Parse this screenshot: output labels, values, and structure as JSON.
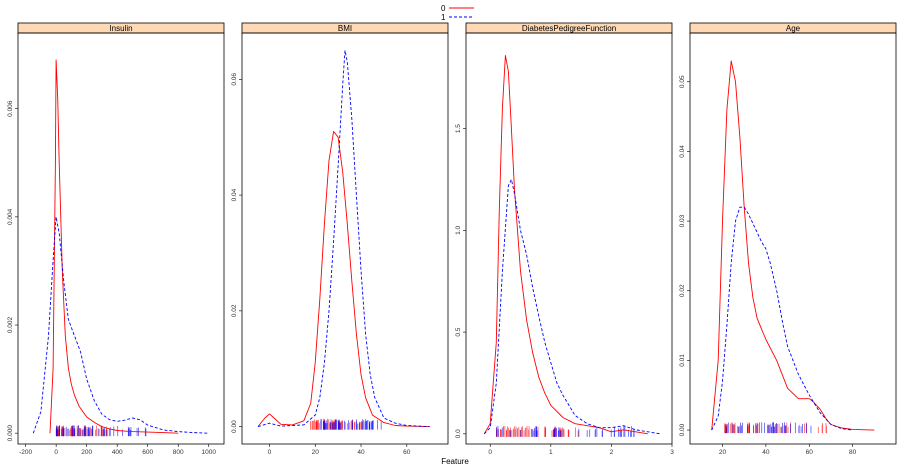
{
  "figure": {
    "xlabel": "Feature",
    "legend": {
      "placement": "top-center",
      "entries": [
        {
          "label": "0",
          "color": "#ff0000",
          "dash": "solid"
        },
        {
          "label": "1",
          "color": "#0000ff",
          "dash": "dashed"
        }
      ]
    },
    "strip_color": "#ffd9b3",
    "colors": {
      "class0": "#ff0000",
      "class1": "#0000ff"
    }
  },
  "chart_data": [
    {
      "type": "line",
      "title": "Insulin",
      "xlim": [
        -250,
        1100
      ],
      "ylim": [
        -0.0002,
        0.0074
      ],
      "xticks": [
        -200,
        0,
        200,
        400,
        600,
        800,
        1000
      ],
      "yticks": [
        0.0,
        0.002,
        0.004,
        0.006
      ],
      "ytick_labels": [
        "0.000",
        "0.002",
        "0.004",
        "0.006"
      ],
      "series": [
        {
          "name": "0",
          "x": [
            -40,
            -20,
            -5,
            0,
            10,
            20,
            40,
            60,
            80,
            100,
            120,
            150,
            200,
            250,
            300,
            350,
            400,
            500,
            600,
            700,
            800
          ],
          "y": [
            0.0,
            0.0012,
            0.005,
            0.0069,
            0.0062,
            0.005,
            0.003,
            0.0018,
            0.0012,
            0.0009,
            0.0007,
            0.0005,
            0.0003,
            0.0002,
            0.00012,
            8e-05,
            5e-05,
            3e-05,
            2e-05,
            1e-05,
            0.0
          ]
        },
        {
          "name": "1",
          "x": [
            -150,
            -100,
            -50,
            -20,
            0,
            20,
            50,
            80,
            120,
            160,
            200,
            250,
            300,
            350,
            400,
            450,
            500,
            550,
            600,
            700,
            800,
            900,
            1000
          ],
          "y": [
            0.0,
            0.0004,
            0.0018,
            0.0032,
            0.004,
            0.0037,
            0.0028,
            0.0021,
            0.0018,
            0.0015,
            0.001,
            0.0006,
            0.00035,
            0.00025,
            0.00022,
            0.00024,
            0.00028,
            0.00025,
            0.00015,
            6e-05,
            3e-05,
            1e-05,
            0.0
          ]
        }
      ],
      "rug": [
        {
          "series": "0",
          "from": 0,
          "to": 350,
          "count": 60
        },
        {
          "series": "1",
          "from": 0,
          "to": 600,
          "count": 50
        }
      ]
    },
    {
      "type": "line",
      "title": "BMI",
      "xlim": [
        -12,
        78
      ],
      "ylim": [
        -0.003,
        0.068
      ],
      "xticks": [
        0,
        20,
        40,
        60
      ],
      "yticks": [
        0.0,
        0.02,
        0.04,
        0.06
      ],
      "ytick_labels": [
        "0.00",
        "0.02",
        "0.04",
        "0.06"
      ],
      "series": [
        {
          "name": "0",
          "x": [
            -5,
            -2,
            0,
            2,
            5,
            10,
            15,
            18,
            20,
            22,
            24,
            26,
            28,
            30,
            32,
            34,
            36,
            38,
            40,
            42,
            45,
            50,
            55,
            60,
            70
          ],
          "y": [
            0.0,
            0.0015,
            0.0022,
            0.0015,
            0.0004,
            0.0003,
            0.001,
            0.004,
            0.011,
            0.022,
            0.035,
            0.046,
            0.051,
            0.05,
            0.044,
            0.035,
            0.025,
            0.016,
            0.009,
            0.005,
            0.002,
            0.0007,
            0.0002,
            0.0001,
            0.0
          ]
        },
        {
          "name": "1",
          "x": [
            -5,
            0,
            5,
            15,
            20,
            22,
            24,
            26,
            28,
            30,
            32,
            33,
            34,
            36,
            38,
            40,
            42,
            44,
            46,
            50,
            55,
            60,
            65,
            70
          ],
          "y": [
            0.0,
            0.0006,
            0.0001,
            0.0003,
            0.002,
            0.005,
            0.011,
            0.02,
            0.032,
            0.045,
            0.059,
            0.065,
            0.063,
            0.053,
            0.04,
            0.027,
            0.016,
            0.009,
            0.005,
            0.0015,
            0.0006,
            0.0002,
            0.0001,
            0.0
          ]
        }
      ],
      "rug": [
        {
          "series": "0",
          "from": 18,
          "to": 42,
          "count": 55
        },
        {
          "series": "1",
          "from": 22,
          "to": 50,
          "count": 50
        }
      ]
    },
    {
      "type": "line",
      "title": "DiabetesPedigreeFunction",
      "xlim": [
        -0.4,
        3.0
      ],
      "ylim": [
        -0.05,
        1.97
      ],
      "xticks": [
        0,
        1,
        2,
        3
      ],
      "yticks": [
        0.0,
        0.5,
        1.0,
        1.5
      ],
      "ytick_labels": [
        "0.0",
        "0.5",
        "1.0",
        "1.5"
      ],
      "series": [
        {
          "name": "0",
          "x": [
            -0.1,
            0.0,
            0.1,
            0.15,
            0.2,
            0.25,
            0.3,
            0.35,
            0.4,
            0.5,
            0.6,
            0.7,
            0.8,
            0.9,
            1.0,
            1.2,
            1.4,
            1.6,
            1.8,
            2.0,
            2.2,
            2.4,
            2.6
          ],
          "y": [
            0.0,
            0.05,
            0.45,
            1.1,
            1.6,
            1.86,
            1.78,
            1.5,
            1.2,
            0.8,
            0.56,
            0.4,
            0.28,
            0.2,
            0.14,
            0.08,
            0.05,
            0.04,
            0.03,
            0.01,
            0.02,
            0.01,
            0.0
          ]
        },
        {
          "name": "1",
          "x": [
            -0.1,
            0.0,
            0.1,
            0.2,
            0.3,
            0.35,
            0.4,
            0.5,
            0.6,
            0.7,
            0.8,
            0.9,
            1.0,
            1.1,
            1.2,
            1.4,
            1.6,
            1.8,
            2.0,
            2.2,
            2.4,
            2.6,
            2.8
          ],
          "y": [
            0.0,
            0.03,
            0.25,
            0.8,
            1.22,
            1.25,
            1.18,
            1.0,
            0.88,
            0.72,
            0.58,
            0.45,
            0.35,
            0.25,
            0.19,
            0.09,
            0.05,
            0.03,
            0.03,
            0.04,
            0.02,
            0.01,
            0.0
          ]
        }
      ],
      "rug": [
        {
          "series": "0",
          "from": 0.1,
          "to": 1.5,
          "count": 55
        },
        {
          "series": "1",
          "from": 0.1,
          "to": 2.4,
          "count": 50
        }
      ]
    },
    {
      "type": "line",
      "title": "Age",
      "xlim": [
        5,
        100
      ],
      "ylim": [
        -0.002,
        0.057
      ],
      "xticks": [
        20,
        40,
        60,
        80
      ],
      "yticks": [
        0.0,
        0.01,
        0.02,
        0.03,
        0.04,
        0.05
      ],
      "ytick_labels": [
        "0.00",
        "0.01",
        "0.02",
        "0.03",
        "0.04",
        "0.05"
      ],
      "series": [
        {
          "name": "0",
          "x": [
            15,
            18,
            20,
            22,
            24,
            26,
            28,
            30,
            32,
            34,
            36,
            40,
            45,
            50,
            55,
            60,
            62,
            65,
            68,
            70,
            75,
            80,
            90
          ],
          "y": [
            0.0,
            0.01,
            0.03,
            0.046,
            0.053,
            0.05,
            0.042,
            0.032,
            0.024,
            0.019,
            0.016,
            0.013,
            0.01,
            0.006,
            0.0045,
            0.0045,
            0.004,
            0.003,
            0.0015,
            0.0008,
            0.0003,
            0.0001,
            0.0
          ]
        },
        {
          "name": "1",
          "x": [
            15,
            18,
            20,
            22,
            24,
            26,
            28,
            30,
            32,
            35,
            38,
            40,
            42,
            45,
            48,
            50,
            55,
            60,
            65,
            70,
            75,
            80
          ],
          "y": [
            0.0,
            0.002,
            0.007,
            0.015,
            0.024,
            0.03,
            0.032,
            0.032,
            0.031,
            0.029,
            0.027,
            0.026,
            0.024,
            0.02,
            0.015,
            0.012,
            0.008,
            0.005,
            0.0025,
            0.0008,
            0.0002,
            0.0
          ]
        }
      ],
      "rug": [
        {
          "series": "0",
          "from": 21,
          "to": 70,
          "count": 45
        },
        {
          "series": "1",
          "from": 21,
          "to": 66,
          "count": 40
        }
      ]
    }
  ]
}
